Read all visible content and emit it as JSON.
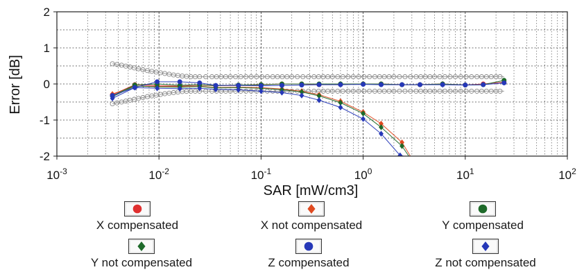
{
  "chart_data": {
    "type": "line",
    "title": "",
    "xlabel": "SAR [mW/cm3]",
    "ylabel": "Error [dB]",
    "x_scale": "log",
    "xlim": [
      0.001,
      100
    ],
    "ylim": [
      -2,
      2
    ],
    "grid": true,
    "x_tick_labels": [
      {
        "base": "10",
        "exp": "-3",
        "value": 0.001
      },
      {
        "base": "10",
        "exp": "-2",
        "value": 0.01
      },
      {
        "base": "10",
        "exp": "-1",
        "value": 0.1
      },
      {
        "base": "10",
        "exp": "0",
        "value": 1
      },
      {
        "base": "10",
        "exp": "1",
        "value": 10
      },
      {
        "base": "10",
        "exp": "2",
        "value": 100
      }
    ],
    "y_ticks": [
      2,
      1,
      0,
      -1,
      -2
    ],
    "y_tick_labels": [
      "2",
      "1",
      "0",
      "-1",
      "-2"
    ],
    "legend_position": "bottom",
    "series": [
      {
        "name": "X compensated",
        "color": "#e03030",
        "marker": "circle",
        "x": [
          0.0035,
          0.0058,
          0.0096,
          0.016,
          0.025,
          0.036,
          0.06,
          0.1,
          0.16,
          0.25,
          0.37,
          0.6,
          1.0,
          1.5,
          2.4,
          3.6,
          6,
          10,
          15,
          24
        ],
        "y": [
          -0.3,
          -0.02,
          -0.05,
          -0.06,
          -0.03,
          -0.05,
          -0.04,
          -0.02,
          0.0,
          0.0,
          -0.02,
          -0.01,
          0.0,
          0.0,
          -0.02,
          -0.02,
          0.0,
          -0.03,
          0.0,
          0.05
        ]
      },
      {
        "name": "X not compensated",
        "color": "#e04a20",
        "marker": "diamond",
        "x": [
          0.0035,
          0.0058,
          0.0096,
          0.016,
          0.025,
          0.036,
          0.06,
          0.1,
          0.16,
          0.25,
          0.37,
          0.6,
          1.0,
          1.5,
          2.4,
          2.9
        ],
        "y": [
          -0.28,
          -0.06,
          -0.07,
          -0.08,
          -0.06,
          -0.1,
          -0.09,
          -0.1,
          -0.14,
          -0.2,
          -0.3,
          -0.48,
          -0.78,
          -1.1,
          -1.62,
          -2.0
        ]
      },
      {
        "name": "Y compensated",
        "color": "#1e6a2a",
        "marker": "circle",
        "x": [
          0.0035,
          0.0058,
          0.0096,
          0.016,
          0.025,
          0.036,
          0.06,
          0.1,
          0.16,
          0.25,
          0.37,
          0.6,
          1.0,
          1.5,
          2.4,
          3.6,
          6,
          10,
          15,
          24
        ],
        "y": [
          -0.33,
          -0.03,
          0.0,
          -0.04,
          -0.02,
          -0.05,
          -0.03,
          -0.02,
          0.0,
          0.0,
          0.0,
          0.0,
          0.0,
          0.0,
          -0.02,
          -0.02,
          0.0,
          -0.03,
          -0.02,
          0.1
        ]
      },
      {
        "name": "Y not compensated",
        "color": "#1e6a2a",
        "marker": "diamond",
        "x": [
          0.0035,
          0.0058,
          0.0096,
          0.016,
          0.025,
          0.036,
          0.06,
          0.1,
          0.16,
          0.25,
          0.37,
          0.6,
          1.0,
          1.5,
          2.4,
          2.8
        ],
        "y": [
          -0.35,
          -0.06,
          -0.08,
          -0.09,
          -0.07,
          -0.11,
          -0.1,
          -0.12,
          -0.16,
          -0.22,
          -0.33,
          -0.52,
          -0.82,
          -1.2,
          -1.72,
          -2.0
        ]
      },
      {
        "name": "Z compensated",
        "color": "#2638b8",
        "marker": "circle",
        "x": [
          0.0035,
          0.0058,
          0.0096,
          0.016,
          0.025,
          0.036,
          0.06,
          0.1,
          0.16,
          0.25,
          0.37,
          0.6,
          1.0,
          1.5,
          2.4,
          3.6,
          6,
          10,
          15,
          24
        ],
        "y": [
          -0.32,
          -0.1,
          0.06,
          0.06,
          0.03,
          -0.04,
          -0.04,
          -0.05,
          -0.04,
          -0.03,
          -0.02,
          -0.02,
          -0.01,
          -0.02,
          -0.02,
          -0.02,
          -0.02,
          -0.03,
          -0.02,
          0.03
        ]
      },
      {
        "name": "Z not compensated",
        "color": "#2638b8",
        "marker": "diamond",
        "x": [
          0.0035,
          0.0058,
          0.0096,
          0.016,
          0.025,
          0.036,
          0.06,
          0.1,
          0.16,
          0.25,
          0.37,
          0.6,
          1.0,
          1.5,
          2.3,
          2.5
        ],
        "y": [
          -0.4,
          -0.1,
          -0.12,
          -0.13,
          -0.12,
          -0.15,
          -0.16,
          -0.2,
          -0.24,
          -0.32,
          -0.45,
          -0.65,
          -0.97,
          -1.38,
          -1.98,
          -2.0
        ]
      }
    ],
    "uncertainty_bounds": [
      {
        "x": [
          0.0035,
          0.0043,
          0.0052,
          0.0063,
          0.0077,
          0.0094,
          0.0114,
          0.0139,
          0.0169,
          0.0205,
          0.025,
          0.033,
          0.05,
          0.08,
          0.13,
          0.2,
          0.33,
          0.5,
          0.8,
          1.3,
          2,
          3.3,
          5,
          8,
          13,
          20,
          24
        ],
        "y": [
          0.56,
          0.52,
          0.47,
          0.42,
          0.37,
          0.33,
          0.29,
          0.25,
          0.22,
          0.2,
          0.2,
          0.2,
          0.2,
          0.2,
          0.2,
          0.2,
          0.2,
          0.2,
          0.2,
          0.2,
          0.2,
          0.2,
          0.2,
          0.2,
          0.2,
          0.2,
          0.2
        ]
      },
      {
        "x": [
          0.0035,
          0.0043,
          0.0052,
          0.0063,
          0.0077,
          0.0094,
          0.0114,
          0.0139,
          0.0169,
          0.0205,
          0.025,
          0.033,
          0.05,
          0.08,
          0.13,
          0.2,
          0.33,
          0.5,
          0.8,
          1.3,
          2,
          3.3,
          5,
          8,
          13,
          20,
          24
        ],
        "y": [
          -0.55,
          -0.5,
          -0.45,
          -0.4,
          -0.35,
          -0.31,
          -0.27,
          -0.24,
          -0.21,
          -0.2,
          -0.2,
          -0.2,
          -0.2,
          -0.2,
          -0.2,
          -0.2,
          -0.2,
          -0.2,
          -0.2,
          -0.2,
          -0.2,
          -0.2,
          -0.2,
          -0.2,
          -0.2,
          -0.2,
          -0.2
        ]
      }
    ]
  }
}
